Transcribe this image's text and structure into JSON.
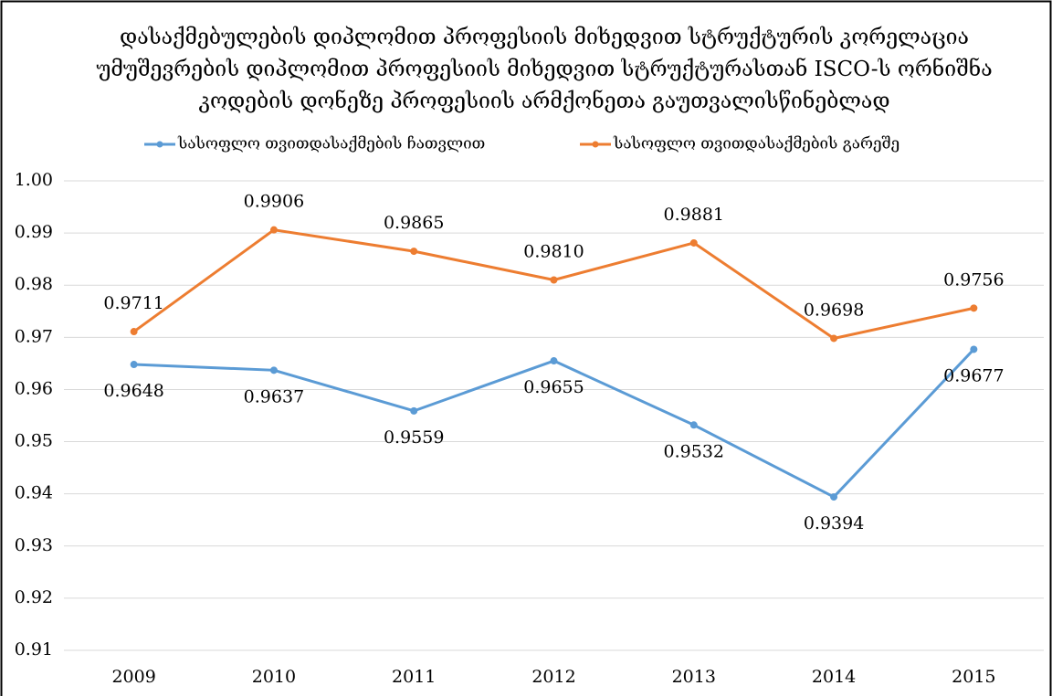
{
  "chart_data": {
    "type": "line",
    "title": [
      "დასაქმებულების  დიპლომით პროფესიის მიხედვით სტრუქტურის კორელაცია",
      "უმუშევრების დიპლომით პროფესიის მიხედვით სტრუქტურასთან ISCO-ს ორნიშნა",
      "კოდების დონეზე პროფესიის არმქონეთა გაუთვალისწინებლად"
    ],
    "categories": [
      "2009",
      "2010",
      "2011",
      "2012",
      "2013",
      "2014",
      "2015"
    ],
    "series": [
      {
        "name": "სასოფლო თვითდასაქმების ჩათვლით",
        "color": "#5b9bd5",
        "values": [
          0.9648,
          0.9637,
          0.9559,
          0.9655,
          0.9532,
          0.9394,
          0.9677
        ]
      },
      {
        "name": "სასოფლო თვითდასაქმების გარეშე",
        "color": "#ed7d31",
        "values": [
          0.9711,
          0.9906,
          0.9865,
          0.981,
          0.9881,
          0.9698,
          0.9756
        ],
        "value_labels": [
          "0.9711",
          "0.9906",
          "0.9865",
          "0.9810",
          "0.9881",
          "0.9698",
          "0.9756"
        ]
      }
    ],
    "ylim": [
      0.91,
      1.0
    ],
    "yticks": [
      {
        "value": 1.0,
        "label": "1.00"
      },
      0.99,
      0.98,
      0.97,
      0.96,
      0.95,
      0.94,
      0.93,
      0.92,
      0.91
    ],
    "grid": true,
    "legend": "top"
  }
}
